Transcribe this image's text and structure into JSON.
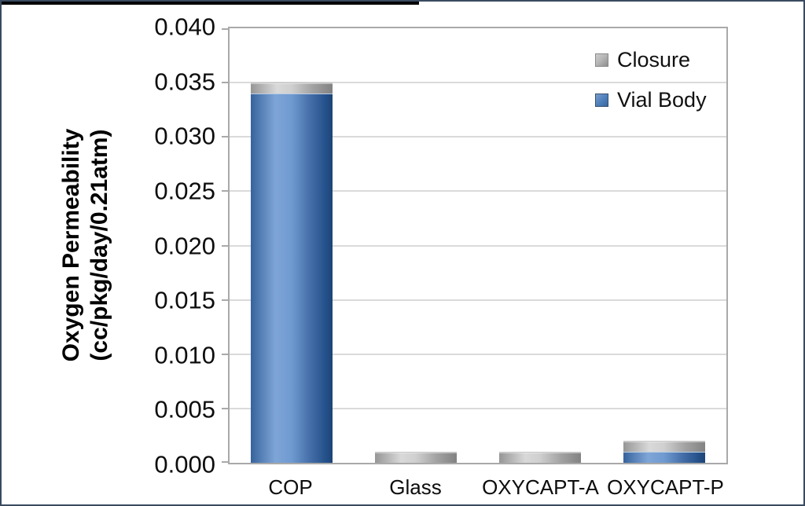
{
  "figure": {
    "background": "#ffffff",
    "outer_border_color": "#3a4b60",
    "top_strip_color": "#000000"
  },
  "chart_data": {
    "type": "bar",
    "stacked": true,
    "title": "",
    "categories": [
      "COP",
      "Glass",
      "OXYCAPT-A",
      "OXYCAPT-P"
    ],
    "series": [
      {
        "name": "Vial Body",
        "color": "#4f81bd",
        "values": [
          0.034,
          0,
          0,
          0.001
        ]
      },
      {
        "name": "Closure",
        "color": "#a8a8a8",
        "values": [
          0.001,
          0.001,
          0.001,
          0.001
        ]
      }
    ],
    "totals": [
      0.035,
      0.001,
      0.001,
      0.002
    ],
    "ylabel_line1": "Oxygen Permeability",
    "ylabel_line2": "(cc/pkg/day/0.21atm)",
    "ylim": [
      0,
      0.04
    ],
    "ytick_step": 0.005,
    "ytick_labels": [
      "0.000",
      "0.005",
      "0.010",
      "0.015",
      "0.020",
      "0.025",
      "0.030",
      "0.035",
      "0.040"
    ],
    "grid": true,
    "legend_position": "top-right-inside",
    "legend": [
      {
        "label": "Closure",
        "swatch": "closure"
      },
      {
        "label": "Vial Body",
        "swatch": "vial-body"
      }
    ]
  },
  "colors": {
    "vial_body_edge": "#1d4475",
    "vial_body_light": "#7fa5d7",
    "closure_edge": "#828282",
    "closure_light": "#d9d9d9",
    "gridline": "#dadada",
    "plot_border": "#a9a9a9",
    "text": "#0d0d0d"
  }
}
